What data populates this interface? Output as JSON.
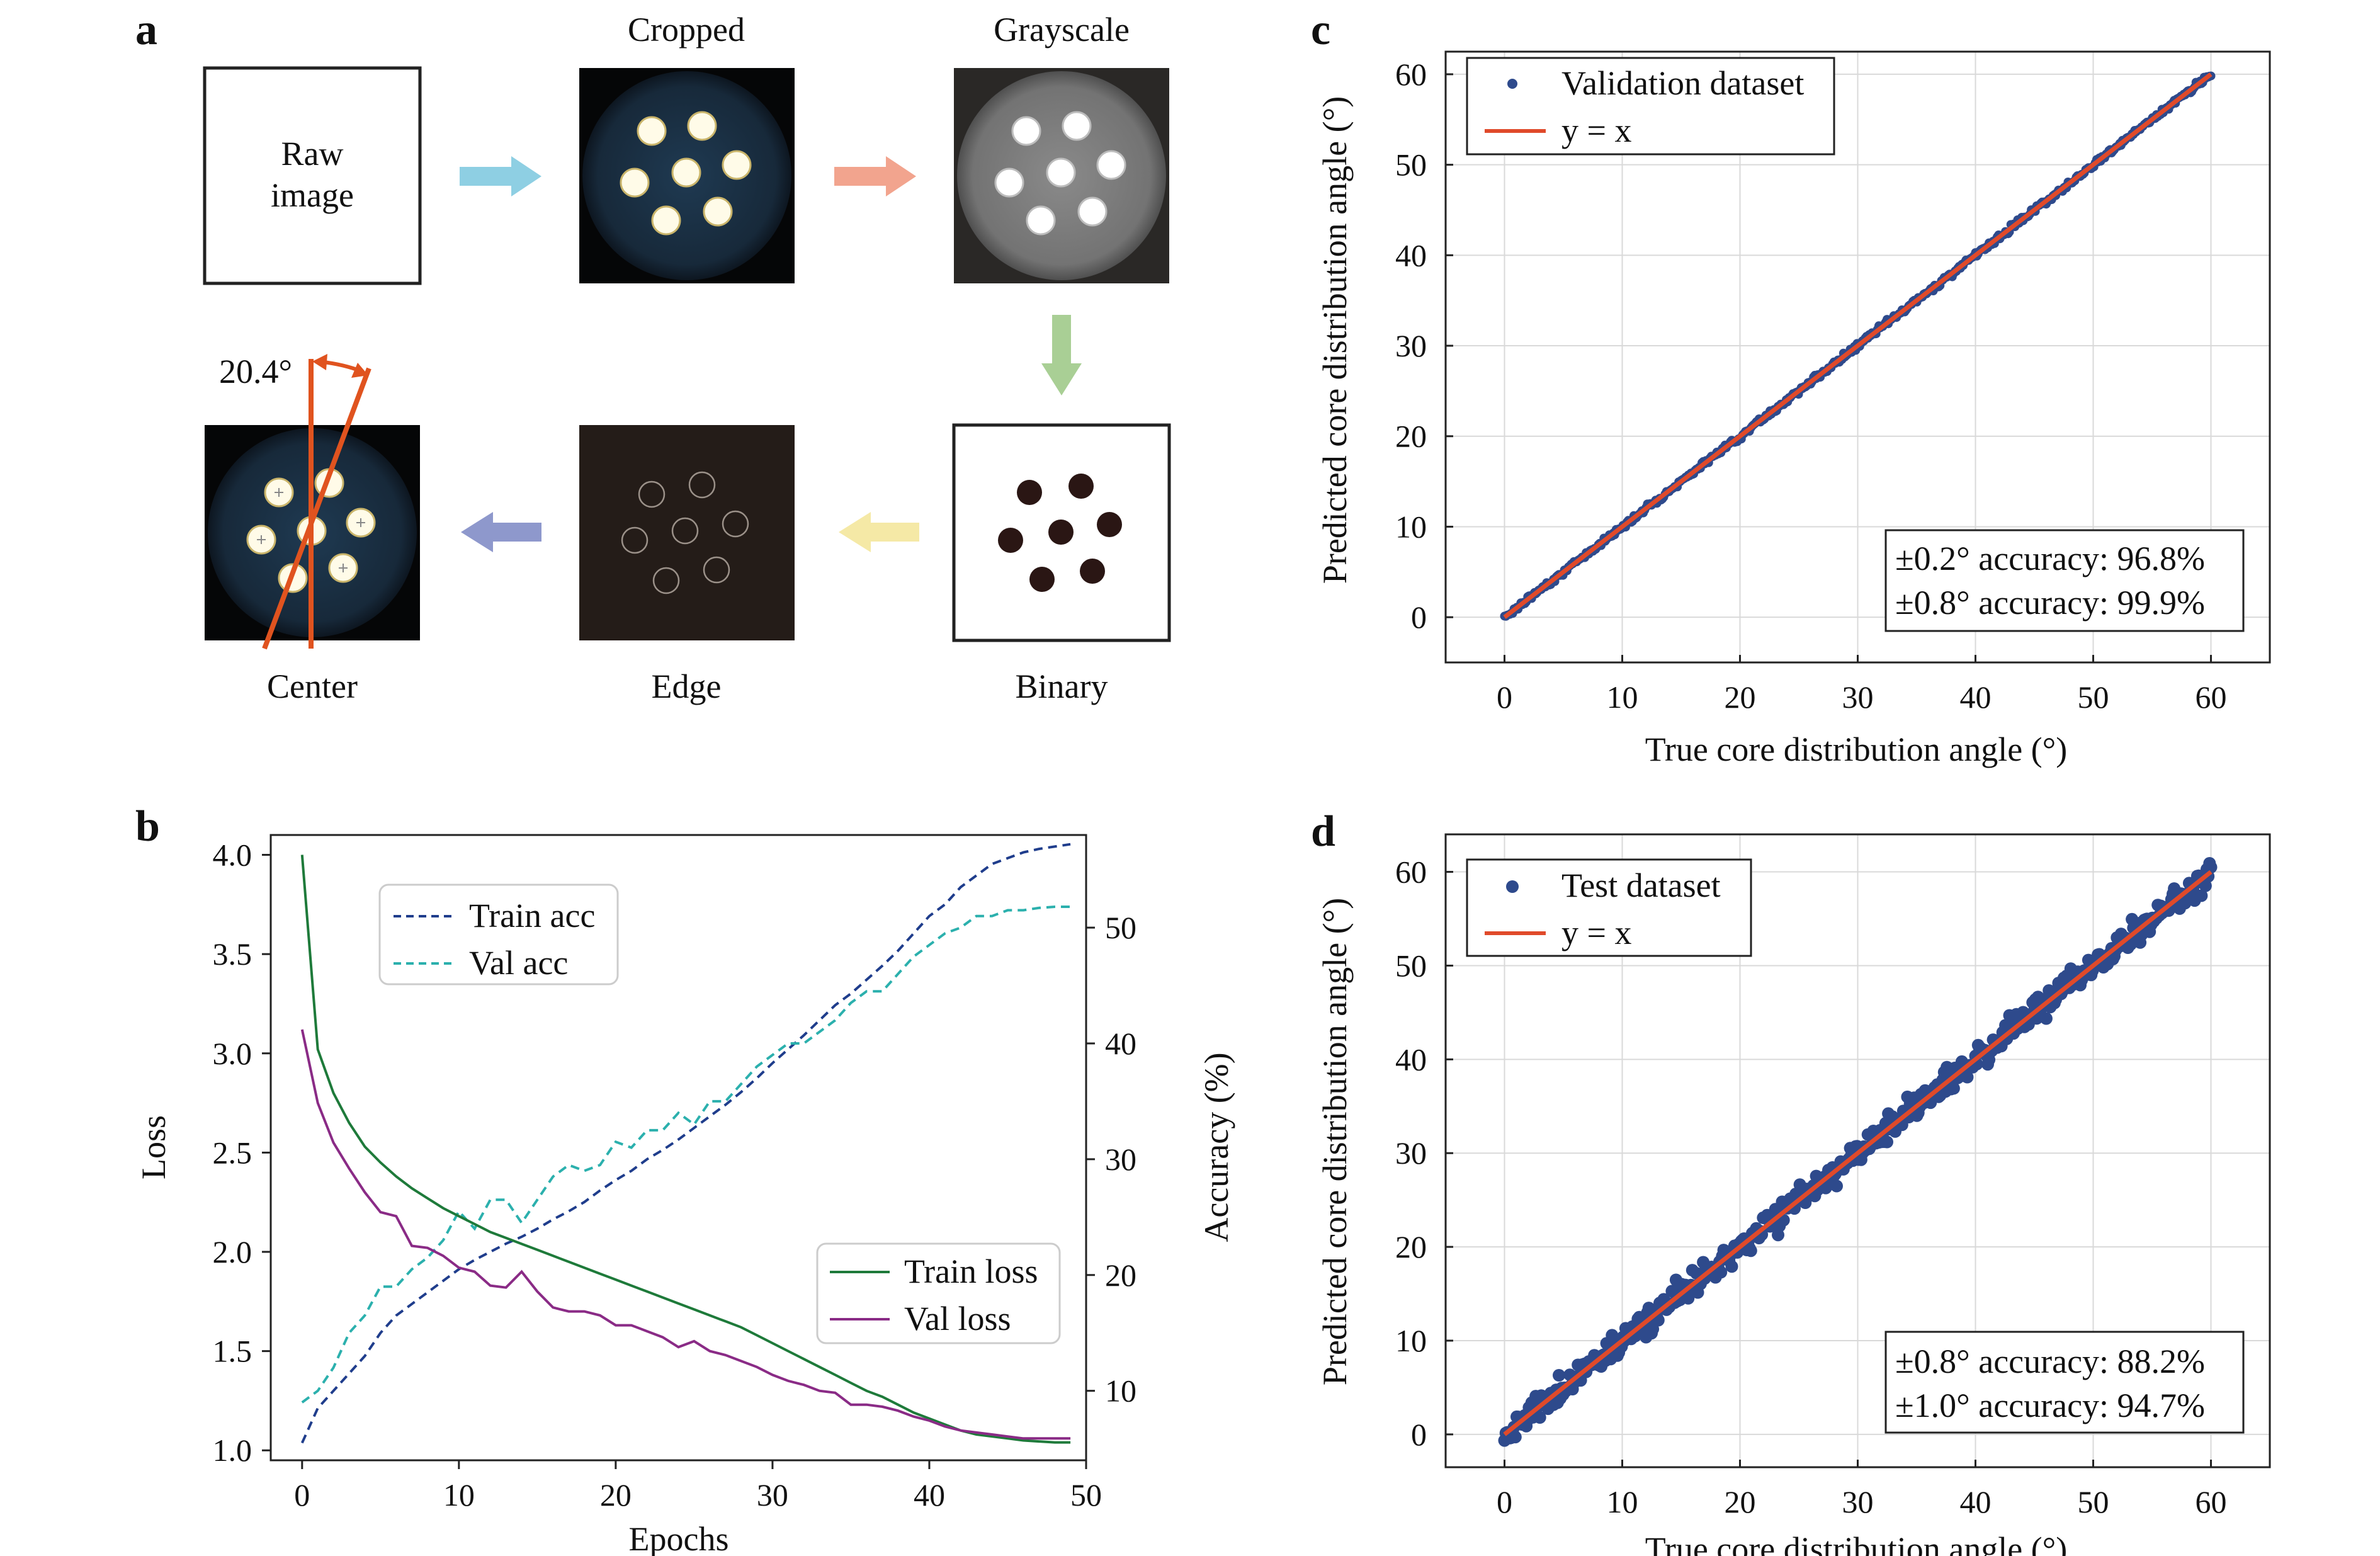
{
  "panel_labels": {
    "a": "a",
    "b": "b",
    "c": "c",
    "d": "d"
  },
  "panel_a": {
    "raw_label_line1": "Raw",
    "raw_label_line2": "image",
    "cropped_label": "Cropped",
    "grayscale_label": "Grayscale",
    "binary_label": "Binary",
    "edge_label": "Edge",
    "center_label": "Center",
    "angle_label": "20.4°",
    "colors": {
      "arrow1": "#8ecfe3",
      "arrow2": "#f2a48e",
      "arrow3": "#a9cf95",
      "arrow4": "#f5e9a6",
      "arrow5": "#8e98cc",
      "angle_line": "#e0531f"
    }
  },
  "chart_data": [
    {
      "type": "line",
      "panel": "b",
      "xlabel": "Epochs",
      "ylabel_left": "Loss",
      "ylabel_right": "Accuracy (%)",
      "xlim": [
        -2,
        50
      ],
      "ylim_left": [
        0.95,
        4.1
      ],
      "ylim_right": [
        4,
        58
      ],
      "xticks": [
        "0",
        "10",
        "20",
        "30",
        "40",
        "50"
      ],
      "yticks_left": [
        "1.0",
        "1.5",
        "2.0",
        "2.5",
        "3.0",
        "3.5",
        "4.0"
      ],
      "yticks_right": [
        "10",
        "20",
        "30",
        "40",
        "50"
      ],
      "grid": false,
      "x": [
        0,
        1,
        2,
        3,
        4,
        5,
        6,
        7,
        8,
        9,
        10,
        11,
        12,
        13,
        14,
        15,
        16,
        17,
        18,
        19,
        20,
        21,
        22,
        23,
        24,
        25,
        26,
        27,
        28,
        29,
        30,
        31,
        32,
        33,
        34,
        35,
        36,
        37,
        38,
        39,
        40,
        41,
        42,
        43,
        44,
        45,
        46,
        47,
        48,
        49
      ],
      "series": [
        {
          "name": "Train acc",
          "axis": "right",
          "style": "dashed",
          "color": "#1f3d8c",
          "values": [
            5.5,
            8.5,
            10,
            11.5,
            13,
            15,
            16.5,
            17.5,
            18.5,
            19.5,
            20.5,
            21.3,
            22,
            22.7,
            23.3,
            24,
            24.8,
            25.5,
            26.3,
            27.3,
            28.2,
            29,
            30,
            30.8,
            31.7,
            32.7,
            33.7,
            34.7,
            35.8,
            37,
            38.3,
            39.5,
            40.7,
            42,
            43.3,
            44.3,
            45.5,
            46.7,
            48,
            49.5,
            51,
            52,
            53.5,
            54.5,
            55.5,
            56,
            56.5,
            56.8,
            57,
            57.2
          ]
        },
        {
          "name": "Val acc",
          "axis": "right",
          "style": "dashed",
          "color": "#2bb0ad",
          "values": [
            9,
            10,
            12,
            15,
            16.5,
            19,
            19,
            20.5,
            21.5,
            23,
            25.5,
            24,
            26.5,
            26.5,
            24.5,
            26.5,
            28.5,
            29.5,
            29,
            29.5,
            31.5,
            31,
            32.5,
            32.5,
            34,
            33,
            35,
            35,
            36.5,
            38,
            39,
            40,
            40,
            41,
            42,
            43.5,
            44.5,
            44.5,
            46,
            47.5,
            48.5,
            49.5,
            50,
            51,
            51,
            51.5,
            51.5,
            51.7,
            51.8,
            51.8
          ]
        },
        {
          "name": "Train loss",
          "axis": "left",
          "style": "solid",
          "color": "#1e7a3a",
          "values": [
            4.0,
            3.02,
            2.8,
            2.65,
            2.53,
            2.45,
            2.38,
            2.32,
            2.27,
            2.22,
            2.18,
            2.14,
            2.1,
            2.07,
            2.04,
            2.01,
            1.98,
            1.95,
            1.92,
            1.89,
            1.86,
            1.83,
            1.8,
            1.77,
            1.74,
            1.71,
            1.68,
            1.65,
            1.62,
            1.58,
            1.54,
            1.5,
            1.46,
            1.42,
            1.38,
            1.34,
            1.3,
            1.27,
            1.23,
            1.19,
            1.16,
            1.13,
            1.1,
            1.08,
            1.07,
            1.06,
            1.05,
            1.045,
            1.04,
            1.04
          ]
        },
        {
          "name": "Val loss",
          "axis": "left",
          "style": "solid",
          "color": "#8a2b86",
          "values": [
            3.12,
            2.75,
            2.55,
            2.42,
            2.3,
            2.2,
            2.18,
            2.03,
            2.02,
            1.98,
            1.92,
            1.9,
            1.83,
            1.82,
            1.9,
            1.8,
            1.72,
            1.7,
            1.7,
            1.68,
            1.63,
            1.63,
            1.6,
            1.57,
            1.52,
            1.55,
            1.5,
            1.48,
            1.45,
            1.42,
            1.38,
            1.35,
            1.33,
            1.3,
            1.29,
            1.23,
            1.23,
            1.22,
            1.2,
            1.17,
            1.15,
            1.12,
            1.1,
            1.09,
            1.08,
            1.07,
            1.06,
            1.06,
            1.06,
            1.06
          ]
        }
      ],
      "legend": [
        {
          "label": "Train acc",
          "placement": "upper-left"
        },
        {
          "label": "Val acc",
          "placement": "upper-left"
        },
        {
          "label": "Train loss",
          "placement": "lower-right"
        },
        {
          "label": "Val loss",
          "placement": "lower-right"
        }
      ]
    },
    {
      "type": "scatter",
      "panel": "c",
      "xlabel": "True core distribution angle (°)",
      "ylabel": "Predicted core distribution angle (°)",
      "xlim": [
        -5,
        65
      ],
      "ylim": [
        -5,
        62.5
      ],
      "xticks": [
        "0",
        "10",
        "20",
        "30",
        "40",
        "50",
        "60"
      ],
      "yticks": [
        "0",
        "10",
        "20",
        "30",
        "40",
        "50",
        "60"
      ],
      "grid": true,
      "series": [
        {
          "name": "Validation dataset",
          "kind": "scatter",
          "color": "#2e4a8c",
          "x_range": [
            0,
            60
          ],
          "spread_deg": 0.2
        },
        {
          "name": "y = x",
          "kind": "line",
          "color": "#e04a2a",
          "x": [
            0,
            60
          ],
          "y": [
            0,
            60
          ]
        }
      ],
      "legend_placement": "upper-left",
      "annotation": [
        "±0.2° accuracy: 96.8%",
        "±0.8° accuracy: 99.9%"
      ]
    },
    {
      "type": "scatter",
      "panel": "d",
      "xlabel": "True core distribution angle (°)",
      "ylabel": "Predicted core distribution angle (°)",
      "xlim": [
        -5,
        65
      ],
      "ylim": [
        -3.5,
        64
      ],
      "xticks": [
        "0",
        "10",
        "20",
        "30",
        "40",
        "50",
        "60"
      ],
      "yticks": [
        "0",
        "10",
        "20",
        "30",
        "40",
        "50",
        "60"
      ],
      "grid": true,
      "series": [
        {
          "name": "Test dataset",
          "kind": "scatter",
          "color": "#2e4a8c",
          "x_range": [
            0,
            60
          ],
          "spread_deg": 0.9
        },
        {
          "name": "y = x",
          "kind": "line",
          "color": "#e04a2a",
          "x": [
            0,
            60
          ],
          "y": [
            0,
            60
          ]
        }
      ],
      "legend_placement": "upper-left",
      "annotation": [
        "±0.8° accuracy: 88.2%",
        "±1.0° accuracy: 94.7%"
      ]
    }
  ]
}
